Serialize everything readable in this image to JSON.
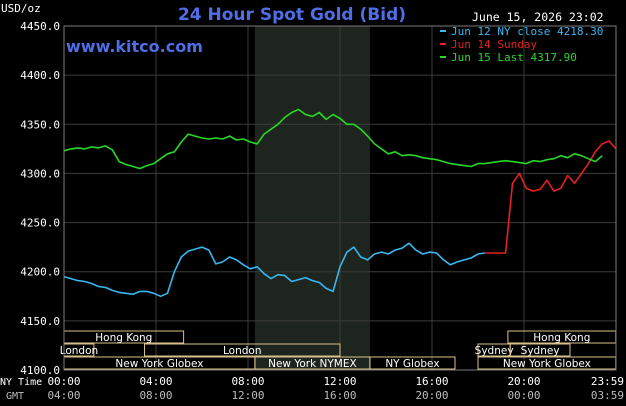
{
  "chart_data": {
    "type": "line",
    "title": "24 Hour Spot Gold (Bid)",
    "watermark": "www.kitco.com",
    "timestamp": "June 15, 2026 23:02",
    "ylabel": "USD/oz",
    "ylim": [
      4100,
      4450
    ],
    "y_ticks": [
      "4450.0",
      "4400.0",
      "4350.0",
      "4300.0",
      "4250.0",
      "4200.0",
      "4150.0",
      "4100.0"
    ],
    "xlim": [
      0,
      24
    ],
    "x_tick_values": [
      0,
      4,
      8,
      12,
      16,
      20,
      24
    ],
    "ny_time_label": "NY Time",
    "ny_ticks": [
      "00:00",
      "04:00",
      "08:00",
      "12:00",
      "16:00",
      "20:00",
      "23:59"
    ],
    "gmt_label": "GMT",
    "gmt_ticks": [
      "04:00",
      "08:00",
      "12:00",
      "16:00",
      "20:00",
      "00:00",
      "03:59"
    ],
    "legend_placement": "top-right",
    "grid": true,
    "highlight_band": [
      8.3,
      13.3
    ],
    "colors": {
      "background": "#000000",
      "plot_background": "#000000",
      "band": "#1e241e",
      "grid": "#3c3c3c",
      "title": "#4e6ee6",
      "text": "#ffffff",
      "session_text": "#ffffff",
      "session_border": "#d9c08a"
    },
    "series": [
      {
        "name": "Jun 12 NY close 4218.30",
        "color": "#38b8f0",
        "x": [
          0,
          0.3,
          0.6,
          0.9,
          1.2,
          1.5,
          1.8,
          2.1,
          2.4,
          2.7,
          3.0,
          3.3,
          3.6,
          3.9,
          4.2,
          4.5,
          4.8,
          5.1,
          5.4,
          5.7,
          6.0,
          6.3,
          6.6,
          6.9,
          7.2,
          7.5,
          7.8,
          8.1,
          8.4,
          8.7,
          9.0,
          9.3,
          9.6,
          9.9,
          10.2,
          10.5,
          10.8,
          11.1,
          11.4,
          11.7,
          12.0,
          12.3,
          12.6,
          12.9,
          13.2,
          13.5,
          13.8,
          14.1,
          14.4,
          14.7,
          15.0,
          15.3,
          15.6,
          15.9,
          16.2,
          16.5,
          16.8,
          17.1,
          17.4,
          17.7,
          18.0,
          18.3
        ],
        "y": [
          4195,
          4193,
          4191,
          4190,
          4188,
          4185,
          4184,
          4181,
          4179,
          4178,
          4177,
          4180,
          4180,
          4178,
          4175,
          4178,
          4200,
          4215,
          4221,
          4223,
          4225,
          4222,
          4208,
          4210,
          4215,
          4212,
          4207,
          4203,
          4205,
          4198,
          4193,
          4197,
          4196,
          4190,
          4192,
          4194,
          4191,
          4189,
          4183,
          4180,
          4205,
          4220,
          4225,
          4215,
          4212,
          4218,
          4220,
          4218,
          4222,
          4224,
          4229,
          4222,
          4218,
          4220,
          4219,
          4212,
          4207,
          4210,
          4212,
          4214,
          4218,
          4219
        ]
      },
      {
        "name": "Jun 14 Sunday",
        "color": "#e62020",
        "x": [
          18.3,
          18.6,
          18.9,
          19.2,
          19.5,
          19.8,
          20.1,
          20.4,
          20.7,
          21.0,
          21.3,
          21.6,
          21.9,
          22.2,
          22.5,
          22.8,
          23.1,
          23.4,
          23.7,
          24.0
        ],
        "y": [
          4219,
          4219,
          4219,
          4219,
          4290,
          4300,
          4285,
          4282,
          4284,
          4293,
          4282,
          4285,
          4298,
          4290,
          4300,
          4310,
          4322,
          4330,
          4333,
          4325
        ]
      },
      {
        "name": "Jun 15 Last 4317.90",
        "color": "#28d828",
        "x": [
          0,
          0.3,
          0.6,
          0.9,
          1.2,
          1.5,
          1.8,
          2.1,
          2.4,
          2.7,
          3.0,
          3.3,
          3.6,
          3.9,
          4.2,
          4.5,
          4.8,
          5.1,
          5.4,
          5.7,
          6.0,
          6.3,
          6.6,
          6.9,
          7.2,
          7.5,
          7.8,
          8.1,
          8.4,
          8.7,
          9.0,
          9.3,
          9.6,
          9.9,
          10.2,
          10.5,
          10.8,
          11.1,
          11.4,
          11.7,
          12.0,
          12.3,
          12.6,
          12.9,
          13.2,
          13.5,
          13.8,
          14.1,
          14.4,
          14.7,
          15.0,
          15.3,
          15.6,
          15.9,
          16.2,
          16.5,
          16.8,
          17.1,
          17.4,
          17.7,
          18.0,
          18.3,
          18.6,
          18.9,
          19.2,
          19.5,
          19.8,
          20.1,
          20.4,
          20.7,
          21.0,
          21.3,
          21.6,
          21.9,
          22.2,
          22.5,
          22.8,
          23.1,
          23.4
        ],
        "y": [
          4323,
          4325,
          4326,
          4325,
          4327,
          4326,
          4328,
          4324,
          4312,
          4309,
          4307,
          4305,
          4308,
          4310,
          4315,
          4320,
          4322,
          4332,
          4340,
          4338,
          4336,
          4335,
          4336,
          4335,
          4338,
          4334,
          4335,
          4332,
          4330,
          4340,
          4345,
          4350,
          4357,
          4362,
          4365,
          4360,
          4358,
          4362,
          4355,
          4360,
          4356,
          4350,
          4350,
          4345,
          4338,
          4330,
          4325,
          4320,
          4322,
          4318,
          4319,
          4318,
          4316,
          4315,
          4314,
          4312,
          4310,
          4309,
          4308,
          4307,
          4310,
          4310,
          4311,
          4312,
          4313,
          4312,
          4311,
          4310,
          4313,
          4312,
          4314,
          4315,
          4318,
          4316,
          4320,
          4318,
          4315,
          4312,
          4318
        ]
      }
    ]
  },
  "sessions": [
    {
      "label": "Hong Kong",
      "row": 0,
      "start": 0,
      "end": 5.2
    },
    {
      "label": "Hong Kong",
      "row": 0,
      "start": 19.3,
      "end": 23.99
    },
    {
      "label": "London",
      "row": 1,
      "start": 0,
      "end": 1.3
    },
    {
      "label": "London",
      "row": 1,
      "start": 3.5,
      "end": 12.0
    },
    {
      "label": "Sydney",
      "row": 1,
      "start": 18.0,
      "end": 19.4
    },
    {
      "label": "Sydney",
      "row": 1,
      "start": 19.4,
      "end": 22.0
    },
    {
      "label": "New York Globex",
      "row": 2,
      "start": 0,
      "end": 8.3
    },
    {
      "label": "New York NYMEX",
      "row": 2,
      "start": 8.3,
      "end": 13.3
    },
    {
      "label": "NY Globex",
      "row": 2,
      "start": 13.3,
      "end": 17.0
    },
    {
      "label": "New York Globex",
      "row": 2,
      "start": 18.0,
      "end": 23.99
    }
  ]
}
